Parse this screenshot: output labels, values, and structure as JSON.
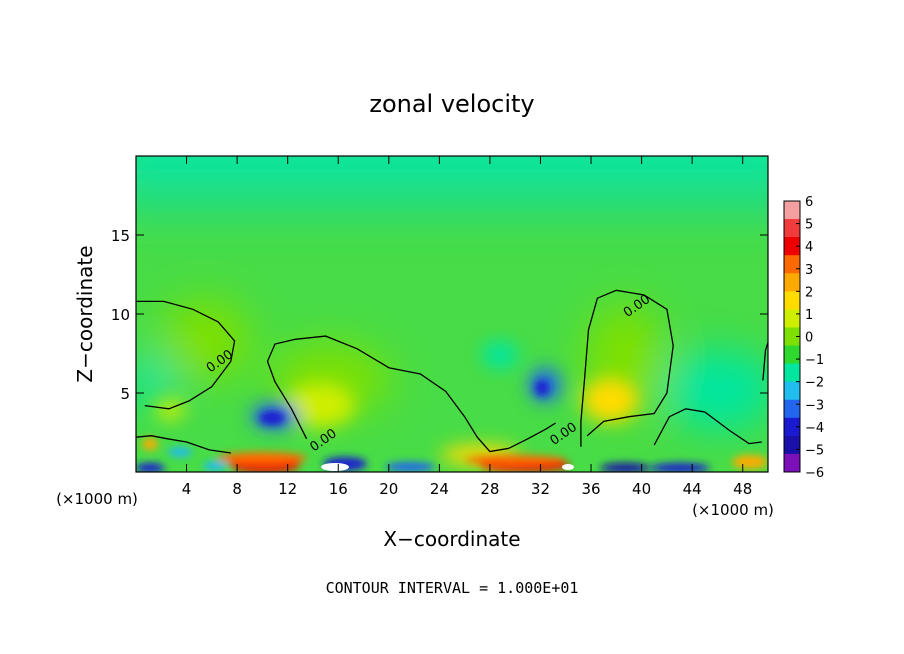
{
  "chart_data": {
    "type": "heatmap",
    "title": "zonal velocity",
    "xlabel": "X−coordinate",
    "ylabel": "Z−coordinate",
    "x_unit": "(×1000 m)",
    "y_unit": "(×1000 m)",
    "xlim": [
      0,
      50
    ],
    "ylim": [
      0,
      20
    ],
    "x_ticks": [
      4,
      8,
      12,
      16,
      20,
      24,
      28,
      32,
      36,
      40,
      44,
      48
    ],
    "y_ticks": [
      5,
      10,
      15
    ],
    "footer": "CONTOUR INTERVAL = 1.000E+01",
    "colorbar": {
      "ticks": [
        "6",
        "5",
        "4",
        "3",
        "2",
        "1",
        "0",
        "−1",
        "−2",
        "−3",
        "−4",
        "−5",
        "−6"
      ],
      "colors": [
        "#f4a0a0",
        "#f03c3c",
        "#ee0000",
        "#ff6a00",
        "#ffaa00",
        "#ffdc00",
        "#cfee00",
        "#7ee000",
        "#2ed82e",
        "#00e6a0",
        "#22bcee",
        "#2266ee",
        "#1a1ad0",
        "#1a10a8",
        "#7a10b8"
      ]
    },
    "contour_label": "0.00",
    "contours": [
      [
        [
          0,
          10.8
        ],
        [
          2.2,
          10.8
        ],
        [
          4.5,
          10.3
        ],
        [
          6.5,
          9.5
        ],
        [
          7.8,
          8.3
        ],
        [
          7.5,
          7
        ],
        [
          6,
          5.4
        ],
        [
          4.2,
          4.5
        ],
        [
          2.6,
          4
        ],
        [
          0.7,
          4.2
        ]
      ],
      [
        [
          13.5,
          2.1
        ],
        [
          12.3,
          4
        ],
        [
          11,
          5.7
        ],
        [
          10.4,
          7
        ],
        [
          11,
          8.1
        ],
        [
          12.6,
          8.4
        ],
        [
          15,
          8.6
        ],
        [
          17.5,
          7.8
        ],
        [
          20,
          6.6
        ],
        [
          22.5,
          6.2
        ],
        [
          24.5,
          5.1
        ],
        [
          26,
          3.5
        ],
        [
          27,
          2.2
        ],
        [
          28,
          1.3
        ],
        [
          29.5,
          1.5
        ],
        [
          31,
          2.1
        ],
        [
          32.4,
          2.7
        ],
        [
          33.2,
          3.1
        ]
      ],
      [
        [
          35.2,
          1.6
        ],
        [
          35.2,
          3.2
        ],
        [
          35.5,
          6
        ],
        [
          35.8,
          9
        ],
        [
          36.5,
          11
        ],
        [
          38,
          11.5
        ],
        [
          40.2,
          11.2
        ],
        [
          42,
          10.3
        ],
        [
          42.5,
          8
        ],
        [
          42,
          5
        ],
        [
          41,
          3.7
        ],
        [
          39,
          3.5
        ],
        [
          37,
          3.2
        ],
        [
          35.7,
          2.3
        ]
      ],
      [
        [
          41,
          1.7
        ],
        [
          42.2,
          3.5
        ],
        [
          43.5,
          4
        ],
        [
          45,
          3.8
        ],
        [
          47,
          2.6
        ],
        [
          48.5,
          1.8
        ],
        [
          49.5,
          1.9
        ]
      ],
      [
        [
          49.6,
          5.8
        ],
        [
          49.8,
          7.7
        ],
        [
          50,
          8.2
        ]
      ],
      [
        [
          0,
          2.2
        ],
        [
          1.2,
          2.3
        ],
        [
          2.5,
          2.1
        ],
        [
          4,
          1.9
        ],
        [
          5.8,
          1.4
        ],
        [
          7.5,
          1.2
        ]
      ]
    ],
    "contour_label_points": [
      [
        6.8,
        6.8
      ],
      [
        15,
        1.8
      ],
      [
        34,
        2.2
      ],
      [
        39.8,
        10.3
      ]
    ]
  }
}
